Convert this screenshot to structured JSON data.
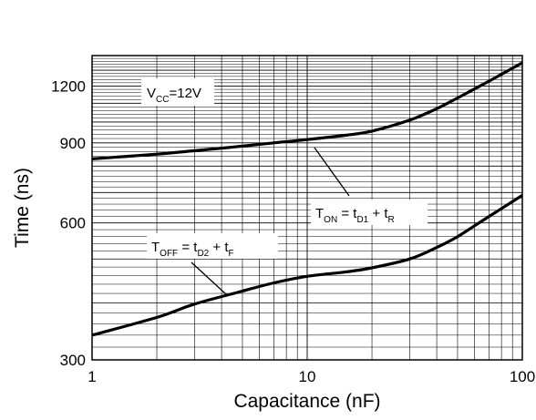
{
  "chart_data": {
    "type": "line",
    "x_scale": "log",
    "y_scale": "log",
    "xlim": [
      1,
      100
    ],
    "ylim": [
      300,
      1400
    ],
    "xlabel": "Capacitance (nF)",
    "ylabel": "Time (ns)",
    "x_ticks": [
      1,
      10,
      100
    ],
    "x_tick_labels": [
      "1",
      "10",
      "100"
    ],
    "y_ticks": [
      300,
      600,
      900,
      1200
    ],
    "y_tick_labels": [
      "300",
      "600",
      "900",
      "1200"
    ],
    "grid": true,
    "series": [
      {
        "name": "T_ON = t_D1 + t_R",
        "x": [
          1,
          2,
          3,
          5,
          7,
          10,
          15,
          20,
          30,
          40,
          50,
          70,
          100
        ],
        "y": [
          830,
          850,
          865,
          885,
          900,
          915,
          935,
          955,
          1010,
          1070,
          1130,
          1230,
          1350
        ]
      },
      {
        "name": "T_OFF = t_D2 + t_F",
        "x": [
          1,
          2,
          3,
          5,
          7,
          10,
          15,
          20,
          30,
          40,
          50,
          70,
          100
        ],
        "y": [
          340,
          372,
          398,
          425,
          443,
          458,
          468,
          478,
          500,
          530,
          560,
          620,
          690
        ]
      }
    ],
    "annotations": {
      "vcc": {
        "main": "V",
        "sub": "CC",
        "rest": "=12V"
      },
      "ton": {
        "T": "T",
        "T_sub": "ON",
        "eq": " = t",
        "t1_sub": "D1",
        "plus": " + t",
        "t2_sub": "R"
      },
      "toff": {
        "T": "T",
        "T_sub": "OFF",
        "eq": " = t",
        "t1_sub": "D2",
        "plus": " + t",
        "t2_sub": "F"
      }
    }
  }
}
